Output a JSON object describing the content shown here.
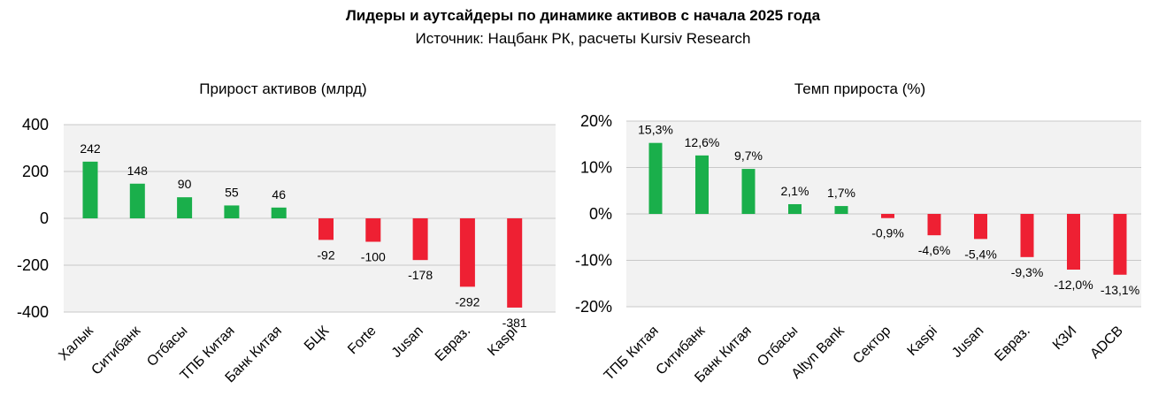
{
  "header": {
    "title": "Лидеры и аутсайдеры по динамике активов с начала 2025 года",
    "subtitle": "Источник: Нацбанк РК, расчеты Kursiv Research"
  },
  "colors": {
    "positive": "#1aaf4b",
    "negative": "#ee2033",
    "plot_bg": "#f2f2f2",
    "grid": "#c8c8c8"
  },
  "chart_data": [
    {
      "type": "bar",
      "title": "Прирост активов (млрд)",
      "categories": [
        "Халык",
        "Ситибанк",
        "Отбасы",
        "ТПБ Китая",
        "Банк Китая",
        "БЦК",
        "Forte",
        "Jusan",
        "Евраз.",
        "Kaspi"
      ],
      "values": [
        242,
        148,
        90,
        55,
        46,
        -92,
        -100,
        -178,
        -292,
        -381
      ],
      "value_labels": [
        "242",
        "148",
        "90",
        "55",
        "46",
        "-92",
        "-100",
        "-178",
        "-292",
        "-381"
      ],
      "yticks": [
        "400",
        "200",
        "0",
        "-200",
        "-400"
      ],
      "ylim": [
        -400,
        400
      ],
      "grid": true
    },
    {
      "type": "bar",
      "title": "Темп прироста (%)",
      "categories": [
        "ТПБ Китая",
        "Ситибанк",
        "Банк Китая",
        "Отбасы",
        "Altyn Bank",
        "Сектор",
        "Kaspi",
        "Jusan",
        "Евраз.",
        "КЗИ",
        "ADCB"
      ],
      "values": [
        15.3,
        12.6,
        9.7,
        2.1,
        1.7,
        -0.9,
        -4.6,
        -5.4,
        -9.3,
        -12.0,
        -13.1
      ],
      "value_labels": [
        "15,3%",
        "12,6%",
        "9,7%",
        "2,1%",
        "1,7%",
        "-0,9%",
        "-4,6%",
        "-5,4%",
        "-9,3%",
        "-12,0%",
        "-13,1%"
      ],
      "yticks": [
        "20%",
        "10%",
        "0%",
        "-10%",
        "-20%"
      ],
      "ylim": [
        -20,
        20
      ],
      "grid": true
    }
  ]
}
